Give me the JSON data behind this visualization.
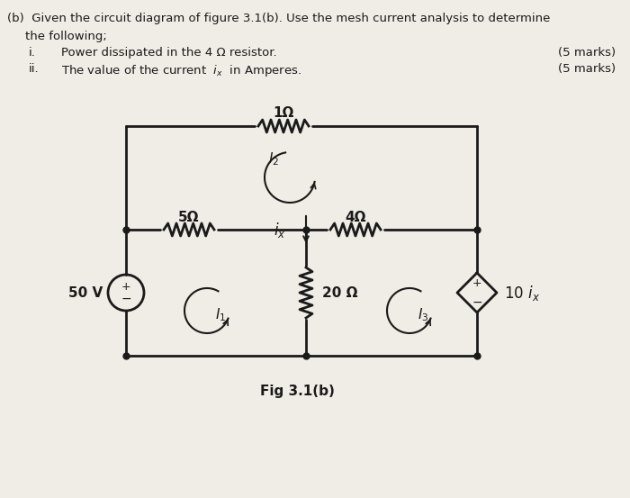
{
  "bg_color": "#f0ece6",
  "line_color": "#1a1a1a",
  "fig_label": "Fig 3.1(b)",
  "r1": "1Ω",
  "r5": "5Ω",
  "r4": "4Ω",
  "r20": "20 Ω",
  "vs_label": "50 V",
  "dep_label": "10 $\\mathit{i_x}$",
  "title_line1": "(b)  Given the circuit diagram of figure 3.1(b). Use the mesh current analysis to determine",
  "title_line2": "     the following;",
  "item_i_num": "i.",
  "item_i_text": "Power dissipated in the 4 Ω resistor.",
  "item_i_marks": "(5 marks)",
  "item_ii_num": "ii.",
  "item_ii_marks": "(5 marks)"
}
